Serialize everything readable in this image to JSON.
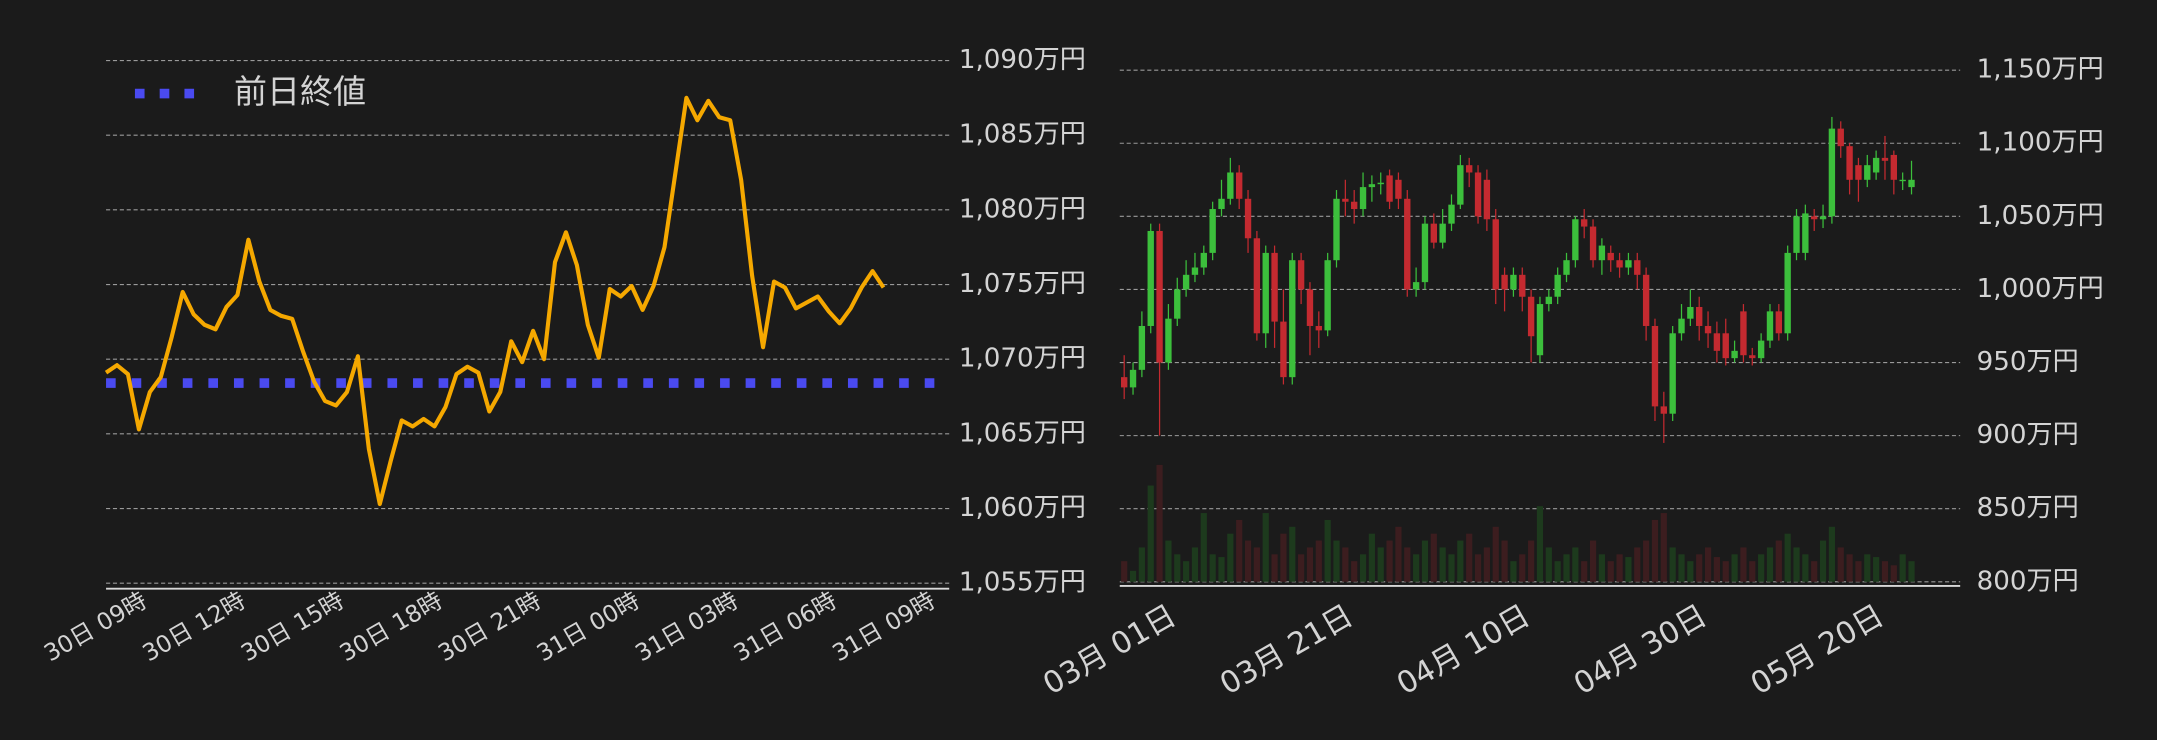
{
  "chart_data": [
    {
      "type": "line",
      "categories": [
        null,
        null,
        null,
        "30日 09時",
        null,
        null,
        null,
        null,
        null,
        null,
        null,
        null,
        "30日 12時",
        null,
        null,
        null,
        null,
        null,
        null,
        null,
        null,
        "30日 15時",
        null,
        null,
        null,
        null,
        null,
        null,
        null,
        null,
        "30日 18時",
        null,
        null,
        null,
        null,
        null,
        null,
        null,
        null,
        "30日 21時",
        null,
        null,
        null,
        null,
        null,
        null,
        null,
        null,
        "31日 00時",
        null,
        null,
        null,
        null,
        null,
        null,
        null,
        null,
        "31日 03時",
        null,
        null,
        null,
        null,
        null,
        null,
        null,
        null,
        "31日 06時",
        null,
        null,
        null,
        null,
        null,
        null,
        null,
        null,
        "31日 09時",
        null,
        null
      ],
      "series": [
        {
          "color": "#f5a800",
          "values": [
            1069.1,
            1069.6,
            1069.0,
            1065.3,
            1067.8,
            1068.8,
            1071.5,
            1074.5,
            1073.0,
            1072.3,
            1072.0,
            1073.5,
            1074.3,
            1078.0,
            1075.2,
            1073.3,
            1072.9,
            1072.7,
            1070.5,
            1068.5,
            1067.2,
            1066.9,
            1067.8,
            1070.2,
            1064.0,
            1060.3,
            1063.2,
            1065.9,
            1065.5,
            1066.0,
            1065.5,
            1066.8,
            1069.0,
            1069.5,
            1069.1,
            1066.5,
            1067.8,
            1071.2,
            1069.8,
            1071.9,
            1070.0,
            1076.5,
            1078.5,
            1076.3,
            1072.3,
            1070.1,
            1074.7,
            1074.2,
            1074.9,
            1073.3,
            1074.9,
            1077.5,
            1082.5,
            1087.5,
            1086.0,
            1087.3,
            1086.2,
            1086.0,
            1082.0,
            1075.6,
            1070.8,
            1075.2,
            1074.8,
            1073.4,
            1073.8,
            1074.2,
            1073.2,
            1072.4,
            1073.4,
            1074.8,
            1075.9,
            1074.8,
            null,
            null,
            null,
            null,
            null,
            null
          ]
        }
      ],
      "reference_line": {
        "name": "前日終値",
        "value": 1068.4,
        "color": "#4a4af0"
      },
      "legend": "upper left",
      "ylim": [
        1055,
        1090
      ],
      "yticks": [
        {
          "value": 1055,
          "label": "1,055万円"
        },
        {
          "value": 1060,
          "label": "1,060万円"
        },
        {
          "value": 1065,
          "label": "1,065万円"
        },
        {
          "value": 1070,
          "label": "1,070万円"
        },
        {
          "value": 1075,
          "label": "1,075万円"
        },
        {
          "value": 1080,
          "label": "1,080万円"
        },
        {
          "value": 1085,
          "label": "1,085万円"
        },
        {
          "value": 1090,
          "label": "1,090万円"
        }
      ],
      "grid": true
    },
    {
      "type": "candlestick",
      "categories": [
        null,
        null,
        null,
        "03月 01日",
        null,
        null,
        null,
        null,
        null,
        null,
        null,
        null,
        null,
        null,
        null,
        null,
        null,
        null,
        null,
        null,
        null,
        null,
        null,
        "03月 21日",
        null,
        null,
        null,
        null,
        null,
        null,
        null,
        null,
        null,
        null,
        null,
        null,
        null,
        null,
        null,
        null,
        null,
        null,
        null,
        "04月 10日",
        null,
        null,
        null,
        null,
        null,
        null,
        null,
        null,
        null,
        null,
        null,
        null,
        null,
        null,
        null,
        null,
        null,
        null,
        null,
        "04月 30日",
        null,
        null,
        null,
        null,
        null,
        null,
        null,
        null,
        null,
        null,
        null,
        null,
        null,
        null,
        null,
        null,
        null,
        null,
        null,
        "05月 20日",
        null,
        null,
        null,
        null,
        null,
        null,
        null,
        null,
        null,
        null,
        null
      ],
      "open": [
        940,
        933,
        945,
        975,
        1040,
        950,
        980,
        1000,
        1010,
        1015,
        1025,
        1055,
        1062,
        1080,
        1062,
        1035,
        970,
        1025,
        978,
        940,
        1020,
        1000,
        975,
        972,
        1020,
        1062,
        1060,
        1055,
        1070,
        1072,
        1078,
        1075,
        1062,
        1000,
        1005,
        1045,
        1032,
        1045,
        1058,
        1085,
        1080,
        1075,
        1048,
        1010,
        1000,
        1010,
        995,
        955,
        990,
        995,
        1010,
        1020,
        1048,
        1043,
        1020,
        1025,
        1020,
        1015,
        1020,
        1010,
        975,
        920,
        915,
        970,
        980,
        988,
        975,
        970,
        970,
        953,
        985,
        955,
        953,
        965,
        985,
        970,
        1025,
        1025,
        1050,
        1048,
        1050,
        1110,
        1098,
        1085,
        1075,
        1080,
        1090,
        1092,
        1075,
        1070,
        null,
        null,
        null,
        null,
        null
      ],
      "high": [
        955,
        950,
        985,
        1045,
        1045,
        990,
        1008,
        1020,
        1025,
        1030,
        1060,
        1075,
        1090,
        1085,
        1068,
        1040,
        1030,
        1030,
        1000,
        1025,
        1025,
        1005,
        985,
        1025,
        1068,
        1075,
        1068,
        1080,
        1078,
        1080,
        1082,
        1080,
        1068,
        1015,
        1050,
        1052,
        1055,
        1065,
        1092,
        1090,
        1085,
        1082,
        1055,
        1015,
        1015,
        1015,
        1000,
        995,
        1000,
        1015,
        1025,
        1050,
        1055,
        1048,
        1035,
        1030,
        1025,
        1025,
        1025,
        1015,
        980,
        930,
        975,
        990,
        1000,
        995,
        985,
        978,
        980,
        965,
        990,
        960,
        970,
        990,
        990,
        1030,
        1055,
        1058,
        1055,
        1058,
        1118,
        1115,
        1100,
        1090,
        1092,
        1095,
        1105,
        1095,
        1080,
        1088,
        null,
        null,
        null,
        null,
        null
      ],
      "low": [
        925,
        928,
        940,
        970,
        900,
        945,
        975,
        995,
        1005,
        1010,
        1020,
        1050,
        1058,
        1055,
        1025,
        965,
        960,
        960,
        935,
        935,
        990,
        955,
        960,
        968,
        1015,
        1050,
        1045,
        1050,
        1060,
        1065,
        1055,
        1055,
        995,
        995,
        1000,
        1028,
        1028,
        1040,
        1055,
        1070,
        1045,
        1040,
        990,
        985,
        995,
        985,
        950,
        950,
        985,
        990,
        1005,
        1015,
        1035,
        1015,
        1010,
        1012,
        1008,
        1010,
        1000,
        965,
        910,
        895,
        910,
        965,
        975,
        965,
        960,
        950,
        948,
        950,
        950,
        948,
        950,
        960,
        965,
        965,
        1020,
        1020,
        1040,
        1042,
        1045,
        1090,
        1065,
        1060,
        1070,
        1075,
        1075,
        1065,
        1068,
        1065,
        null,
        null,
        null,
        null,
        null
      ],
      "close": [
        933,
        945,
        975,
        1040,
        950,
        980,
        1000,
        1010,
        1015,
        1025,
        1055,
        1062,
        1080,
        1062,
        1035,
        970,
        1025,
        978,
        940,
        1020,
        1000,
        975,
        972,
        1020,
        1062,
        1060,
        1055,
        1070,
        1072,
        1073,
        1060,
        1062,
        1000,
        1005,
        1045,
        1032,
        1045,
        1058,
        1085,
        1080,
        1050,
        1048,
        1000,
        1000,
        1010,
        995,
        968,
        990,
        995,
        1010,
        1020,
        1048,
        1043,
        1020,
        1030,
        1020,
        1015,
        1020,
        1010,
        975,
        920,
        915,
        970,
        980,
        988,
        975,
        970,
        958,
        953,
        958,
        955,
        953,
        965,
        985,
        970,
        1025,
        1050,
        1052,
        1048,
        1050,
        1110,
        1098,
        1075,
        1075,
        1085,
        1090,
        1088,
        1075,
        1075,
        1075,
        null,
        null,
        null,
        null,
        null
      ],
      "volume": [
        15,
        8,
        25,
        70,
        85,
        30,
        20,
        15,
        25,
        50,
        20,
        18,
        35,
        45,
        30,
        25,
        50,
        20,
        35,
        40,
        20,
        25,
        30,
        45,
        30,
        25,
        15,
        20,
        35,
        25,
        30,
        40,
        25,
        20,
        30,
        35,
        25,
        20,
        30,
        35,
        20,
        25,
        40,
        30,
        15,
        20,
        30,
        55,
        25,
        15,
        20,
        25,
        15,
        30,
        20,
        15,
        20,
        18,
        25,
        30,
        45,
        50,
        25,
        20,
        15,
        20,
        25,
        18,
        15,
        20,
        25,
        15,
        20,
        25,
        30,
        35,
        25,
        20,
        15,
        30,
        40,
        25,
        20,
        15,
        20,
        18,
        15,
        12,
        20,
        15,
        null,
        null,
        null,
        null,
        null
      ],
      "up_color": "#3cbf3c",
      "down_color": "#c42a30",
      "volume_up_color": "#1d3a1d",
      "volume_down_color": "#3c1d1f",
      "ylim": [
        800,
        1150
      ],
      "yticks": [
        {
          "value": 800,
          "label": "800万円"
        },
        {
          "value": 850,
          "label": "850万円"
        },
        {
          "value": 900,
          "label": "900万円"
        },
        {
          "value": 950,
          "label": "950万円"
        },
        {
          "value": 1000,
          "label": "1,000万円"
        },
        {
          "value": 1050,
          "label": "1,050万円"
        },
        {
          "value": 1100,
          "label": "1,100万円"
        },
        {
          "value": 1150,
          "label": "1,150万円"
        }
      ],
      "grid": true
    }
  ]
}
